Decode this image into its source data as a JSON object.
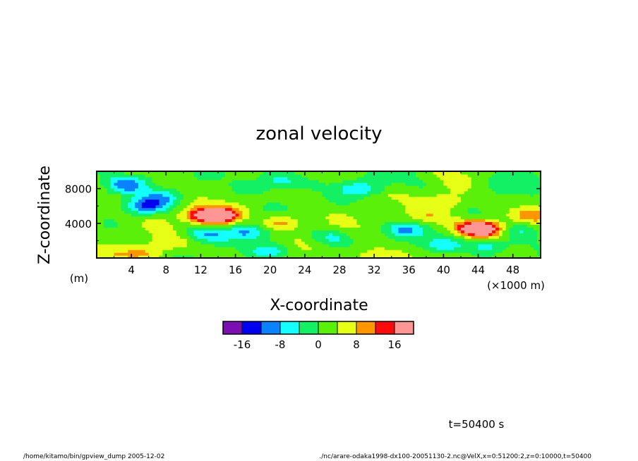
{
  "chart_data": {
    "type": "heatmap",
    "title": "zonal velocity",
    "xlabel": "X-coordinate",
    "ylabel": "Z-coordinate",
    "x_unit_label": "(×1000 m)",
    "y_unit_label": "(m)",
    "xlim": [
      0,
      51.2
    ],
    "ylim": [
      0,
      10000
    ],
    "x_ticks": [
      4,
      8,
      12,
      16,
      20,
      24,
      28,
      32,
      36,
      40,
      44,
      48
    ],
    "y_ticks": [
      4000,
      8000
    ],
    "colorbar": {
      "levels": [
        -20,
        -16,
        -12,
        -8,
        -4,
        0,
        4,
        8,
        12,
        16,
        20
      ],
      "colors": [
        "#7b0fb4",
        "#0000f0",
        "#0a82ff",
        "#14ffff",
        "#14f064",
        "#5af00a",
        "#e6ff14",
        "#ff9600",
        "#ff0a0a",
        "#ff9696"
      ],
      "tick_labels": [
        "-16",
        "-8",
        "0",
        "8",
        "16"
      ],
      "tick_values": [
        -16,
        -8,
        0,
        8,
        16
      ]
    },
    "features": [
      {
        "x": 5.5,
        "z": 6000,
        "u": -10
      },
      {
        "x": 3.5,
        "z": 8600,
        "u": -7
      },
      {
        "x": 7.5,
        "z": 7000,
        "u": -6
      },
      {
        "x": 12.0,
        "z": 5000,
        "u": 9
      },
      {
        "x": 13.5,
        "z": 4800,
        "u": 12
      },
      {
        "x": 14.0,
        "z": 5000,
        "u": 16
      },
      {
        "x": 21.5,
        "z": 4100,
        "u": 10
      },
      {
        "x": 17.5,
        "z": 3000,
        "u": -8
      },
      {
        "x": 12.5,
        "z": 2800,
        "u": -7
      },
      {
        "x": 20.0,
        "z": 800,
        "u": -7
      },
      {
        "x": 21.0,
        "z": 8800,
        "u": -6
      },
      {
        "x": 30.0,
        "z": 8000,
        "u": -5
      },
      {
        "x": 32.0,
        "z": 200,
        "u": 11
      },
      {
        "x": 40.5,
        "z": 6500,
        "u": 9
      },
      {
        "x": 44.0,
        "z": 3500,
        "u": 13
      },
      {
        "x": 44.5,
        "z": 3400,
        "u": 18
      },
      {
        "x": 45.0,
        "z": 1400,
        "u": -8
      },
      {
        "x": 35.5,
        "z": 3300,
        "u": -7
      },
      {
        "x": 38.5,
        "z": 4700,
        "u": 8
      },
      {
        "x": 40.0,
        "z": 1600,
        "u": -6
      },
      {
        "x": 50.5,
        "z": 5000,
        "u": 9
      },
      {
        "x": 8.0,
        "z": 1800,
        "u": 6
      },
      {
        "x": 5.5,
        "z": 600,
        "u": 8
      },
      {
        "x": 2.5,
        "z": 300,
        "u": 5
      },
      {
        "x": 48.5,
        "z": 3300,
        "u": -5
      },
      {
        "x": 27.0,
        "z": 2500,
        "u": -4
      }
    ]
  },
  "footer": {
    "time_label": "t=50400 s",
    "left_text": "/home/kitamo/bin/gpview_dump  2005-12-02",
    "right_text": "./nc/arare-odaka1998-dx100-20051130-2.nc@VelX,x=0:51200:2,z=0:10000,t=50400"
  }
}
